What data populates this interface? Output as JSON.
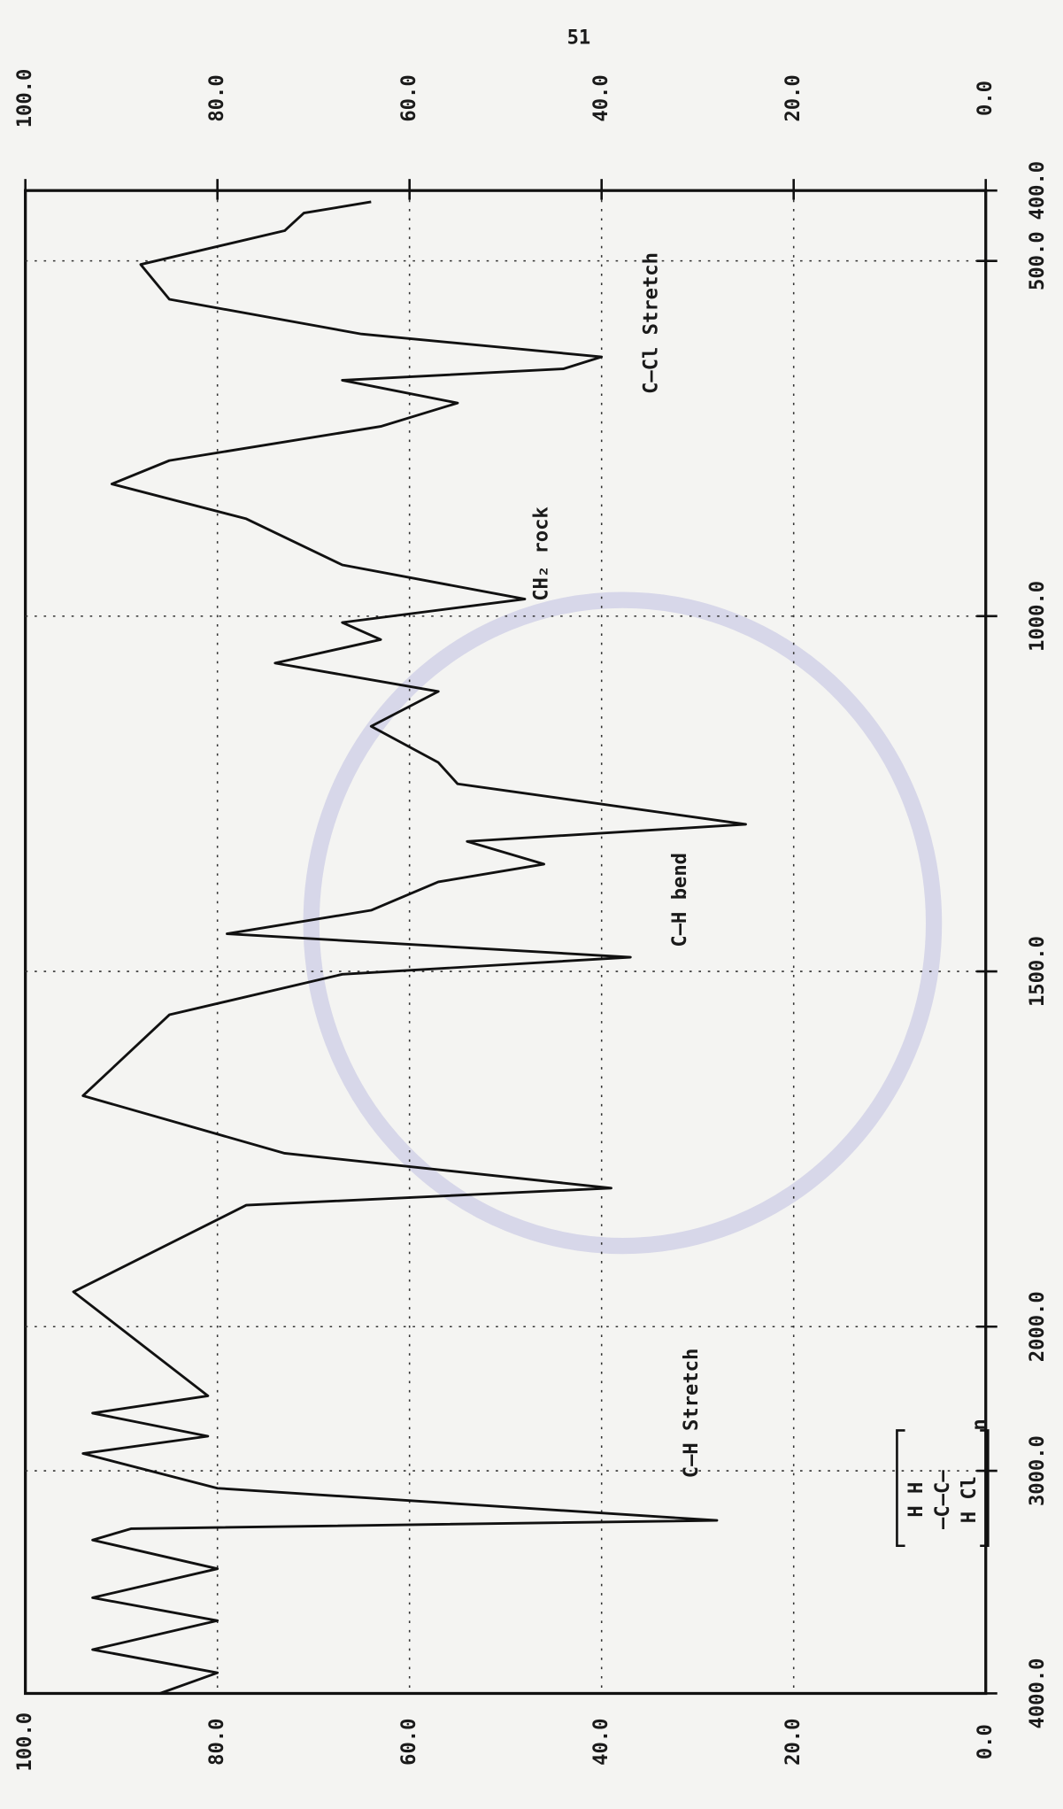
{
  "chart_data": {
    "type": "line",
    "page_number": "51",
    "x": [
      416,
      432,
      457,
      505,
      554,
      603,
      635,
      652,
      668,
      700,
      733,
      781,
      814,
      863,
      928,
      976,
      1009,
      1033,
      1066,
      1106,
      1155,
      1206,
      1236,
      1293,
      1317,
      1349,
      1374,
      1414,
      1447,
      1480,
      1504,
      1561,
      1675,
      1756,
      1805,
      1829,
      1951,
      2480,
      2600,
      2760,
      2880,
      3078,
      3223,
      3260,
      3311,
      3440,
      3570,
      3673,
      3803,
      3907,
      4000
    ],
    "values": [
      64,
      71,
      73,
      88,
      85,
      65,
      40,
      44,
      67,
      55,
      63,
      85,
      91,
      77,
      67,
      48,
      67,
      63,
      74,
      57,
      64,
      57,
      55,
      25,
      54,
      46,
      57,
      64,
      79,
      37,
      67,
      85,
      94,
      73,
      39,
      77,
      95,
      81,
      93,
      81,
      94,
      80,
      28,
      89,
      93,
      80,
      93,
      80,
      93,
      80,
      86
    ],
    "color": "#111111",
    "xlim": [
      4000,
      400
    ],
    "xticks": [
      {
        "value": 4000,
        "label": "4000.0"
      },
      {
        "value": 3000,
        "label": "3000.0"
      },
      {
        "value": 2000,
        "label": "2000.0"
      },
      {
        "value": 1500,
        "label": "1500.0"
      },
      {
        "value": 1000,
        "label": "1000.0"
      },
      {
        "value": 500,
        "label": "500.0"
      },
      {
        "value": 400,
        "label": "400.0"
      }
    ],
    "ylim": [
      0,
      100
    ],
    "yticks": [
      {
        "value": 100,
        "label": "100.0"
      },
      {
        "value": 80,
        "label": "80.0"
      },
      {
        "value": 60,
        "label": "60.0"
      },
      {
        "value": 40,
        "label": "40.0"
      },
      {
        "value": 20,
        "label": "20.0"
      },
      {
        "value": 0,
        "label": "0.0"
      }
    ],
    "grid": true,
    "annotations": [
      "C–Cl Stretch",
      "CH₂ rock",
      "C–H bend",
      "C–H Stretch"
    ],
    "formula": [
      "H    H",
      "—C—C—",
      "H    Cl",
      "n"
    ]
  }
}
